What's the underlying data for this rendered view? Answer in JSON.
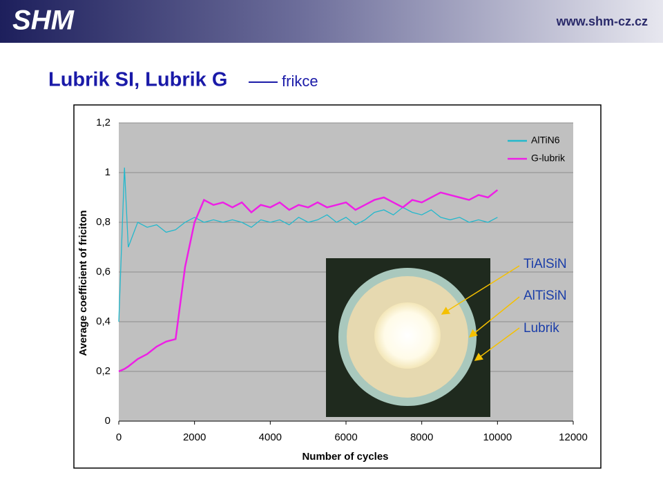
{
  "header": {
    "logo": "SHM",
    "url": "www.shm-cz.cz"
  },
  "slide": {
    "title": "Lubrik SI, Lubrik G",
    "subtitle": "frikce"
  },
  "image_labels": [
    "TiAlSiN",
    "AlTiSiN",
    "Lubrik"
  ],
  "chart_data": {
    "type": "line",
    "x_label": "Number of cycles",
    "y_label": "Average coefficient of friciton",
    "x": [
      0,
      150,
      250,
      500,
      750,
      1000,
      1250,
      1500,
      1750,
      2000,
      2250,
      2500,
      2750,
      3000,
      3250,
      3500,
      3750,
      4000,
      4250,
      4500,
      4750,
      5000,
      5250,
      5500,
      5750,
      6000,
      6250,
      6500,
      6750,
      7000,
      7250,
      7500,
      7750,
      8000,
      8250,
      8500,
      8750,
      9000,
      9250,
      9500,
      9750,
      10000
    ],
    "series": [
      {
        "name": "AlTiN6",
        "color": "#22b8cc",
        "values": [
          0.4,
          1.02,
          0.7,
          0.8,
          0.78,
          0.79,
          0.76,
          0.77,
          0.8,
          0.82,
          0.8,
          0.81,
          0.8,
          0.81,
          0.8,
          0.78,
          0.81,
          0.8,
          0.81,
          0.79,
          0.82,
          0.8,
          0.81,
          0.83,
          0.8,
          0.82,
          0.79,
          0.81,
          0.84,
          0.85,
          0.83,
          0.86,
          0.84,
          0.83,
          0.85,
          0.82,
          0.81,
          0.82,
          0.8,
          0.81,
          0.8,
          0.82
        ]
      },
      {
        "name": "G-lubrik",
        "color": "#ee1fe6",
        "values": [
          0.2,
          0.21,
          0.22,
          0.25,
          0.27,
          0.3,
          0.32,
          0.33,
          0.62,
          0.8,
          0.89,
          0.87,
          0.88,
          0.86,
          0.88,
          0.84,
          0.87,
          0.86,
          0.88,
          0.85,
          0.87,
          0.86,
          0.88,
          0.86,
          0.87,
          0.88,
          0.85,
          0.87,
          0.89,
          0.9,
          0.88,
          0.86,
          0.89,
          0.88,
          0.9,
          0.92,
          0.91,
          0.9,
          0.89,
          0.91,
          0.9,
          0.93
        ]
      }
    ],
    "xlim": [
      0,
      12000
    ],
    "xticks": [
      0,
      2000,
      4000,
      6000,
      8000,
      10000,
      12000
    ],
    "ylim": [
      0,
      1.2
    ],
    "yticks": [
      0,
      {
        "value": 0.2,
        "label": "0,2"
      },
      {
        "value": 0.4,
        "label": "0,4"
      },
      {
        "value": 0.6,
        "label": "0,6"
      },
      {
        "value": 0.8,
        "label": "0,8"
      },
      1,
      {
        "value": 1.2,
        "label": "1,2"
      }
    ],
    "grid": true,
    "legend": "top-right"
  }
}
